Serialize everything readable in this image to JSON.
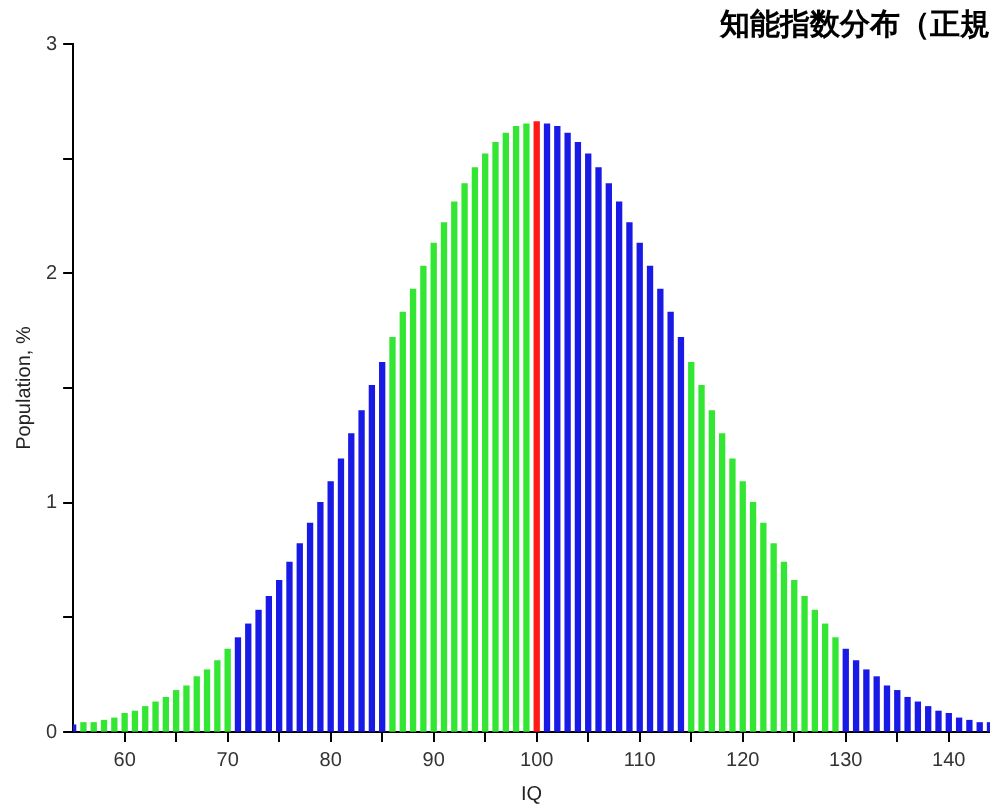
{
  "chart_data": {
    "type": "bar",
    "title": "知能指数分布（正規",
    "xlabel": "IQ",
    "ylabel": "Population, %",
    "x": [
      55,
      56,
      57,
      58,
      59,
      60,
      61,
      62,
      63,
      64,
      65,
      66,
      67,
      68,
      69,
      70,
      71,
      72,
      73,
      74,
      75,
      76,
      77,
      78,
      79,
      80,
      81,
      82,
      83,
      84,
      85,
      86,
      87,
      88,
      89,
      90,
      91,
      92,
      93,
      94,
      95,
      96,
      97,
      98,
      99,
      100,
      101,
      102,
      103,
      104,
      105,
      106,
      107,
      108,
      109,
      110,
      111,
      112,
      113,
      114,
      115,
      116,
      117,
      118,
      119,
      120,
      121,
      122,
      123,
      124,
      125,
      126,
      127,
      128,
      129,
      130,
      131,
      132,
      133,
      134,
      135,
      136,
      137,
      138,
      139,
      140,
      141,
      142,
      143,
      144
    ],
    "values": [
      0.03,
      0.04,
      0.04,
      0.05,
      0.06,
      0.08,
      0.09,
      0.11,
      0.13,
      0.15,
      0.18,
      0.2,
      0.24,
      0.27,
      0.31,
      0.36,
      0.41,
      0.47,
      0.53,
      0.59,
      0.66,
      0.74,
      0.82,
      0.91,
      1.0,
      1.09,
      1.19,
      1.3,
      1.4,
      1.51,
      1.61,
      1.72,
      1.83,
      1.93,
      2.03,
      2.13,
      2.22,
      2.31,
      2.39,
      2.46,
      2.52,
      2.57,
      2.61,
      2.64,
      2.65,
      2.66,
      2.65,
      2.64,
      2.61,
      2.57,
      2.52,
      2.46,
      2.39,
      2.31,
      2.22,
      2.13,
      2.03,
      1.93,
      1.83,
      1.72,
      1.61,
      1.51,
      1.4,
      1.3,
      1.19,
      1.09,
      1.0,
      0.91,
      0.82,
      0.74,
      0.66,
      0.59,
      0.53,
      0.47,
      0.41,
      0.36,
      0.31,
      0.27,
      0.24,
      0.2,
      0.18,
      0.15,
      0.13,
      0.11,
      0.09,
      0.08,
      0.06,
      0.05,
      0.04,
      0.04
    ],
    "colors": [
      "#1a1ae6",
      "#33e633",
      "#33e633",
      "#33e633",
      "#33e633",
      "#33e633",
      "#33e633",
      "#33e633",
      "#33e633",
      "#33e633",
      "#33e633",
      "#33e633",
      "#33e633",
      "#33e633",
      "#33e633",
      "#33e633",
      "#1a1ae6",
      "#1a1ae6",
      "#1a1ae6",
      "#1a1ae6",
      "#1a1ae6",
      "#1a1ae6",
      "#1a1ae6",
      "#1a1ae6",
      "#1a1ae6",
      "#1a1ae6",
      "#1a1ae6",
      "#1a1ae6",
      "#1a1ae6",
      "#1a1ae6",
      "#1a1ae6",
      "#33e633",
      "#33e633",
      "#33e633",
      "#33e633",
      "#33e633",
      "#33e633",
      "#33e633",
      "#33e633",
      "#33e633",
      "#33e633",
      "#33e633",
      "#33e633",
      "#33e633",
      "#33e633",
      "#ff1a1a",
      "#1a1ae6",
      "#1a1ae6",
      "#1a1ae6",
      "#1a1ae6",
      "#1a1ae6",
      "#1a1ae6",
      "#1a1ae6",
      "#1a1ae6",
      "#1a1ae6",
      "#1a1ae6",
      "#1a1ae6",
      "#1a1ae6",
      "#1a1ae6",
      "#1a1ae6",
      "#33e633",
      "#33e633",
      "#33e633",
      "#33e633",
      "#33e633",
      "#33e633",
      "#33e633",
      "#33e633",
      "#33e633",
      "#33e633",
      "#33e633",
      "#33e633",
      "#33e633",
      "#33e633",
      "#33e633",
      "#1a1ae6",
      "#1a1ae6",
      "#1a1ae6",
      "#1a1ae6",
      "#1a1ae6",
      "#1a1ae6",
      "#1a1ae6",
      "#1a1ae6",
      "#1a1ae6",
      "#1a1ae6",
      "#1a1ae6",
      "#1a1ae6",
      "#1a1ae6",
      "#1a1ae6",
      "#1a1ae6"
    ],
    "xlim": [
      55,
      144
    ],
    "xticks": [
      60,
      {
        "value": 65,
        "label": null
      },
      70,
      {
        "value": 75,
        "label": null
      },
      80,
      {
        "value": 85,
        "label": null
      },
      90,
      {
        "value": 95,
        "label": null
      },
      100,
      {
        "value": 105,
        "label": null
      },
      110,
      {
        "value": 115,
        "label": null
      },
      120,
      {
        "value": 125,
        "label": null
      },
      130,
      {
        "value": 135,
        "label": null
      },
      140
    ],
    "ylim": [
      0,
      3
    ],
    "yticks": [
      0,
      {
        "value": 0.5,
        "label": null
      },
      1,
      {
        "value": 1.5,
        "label": null
      },
      2,
      {
        "value": 2.5,
        "label": null
      },
      3
    ]
  }
}
